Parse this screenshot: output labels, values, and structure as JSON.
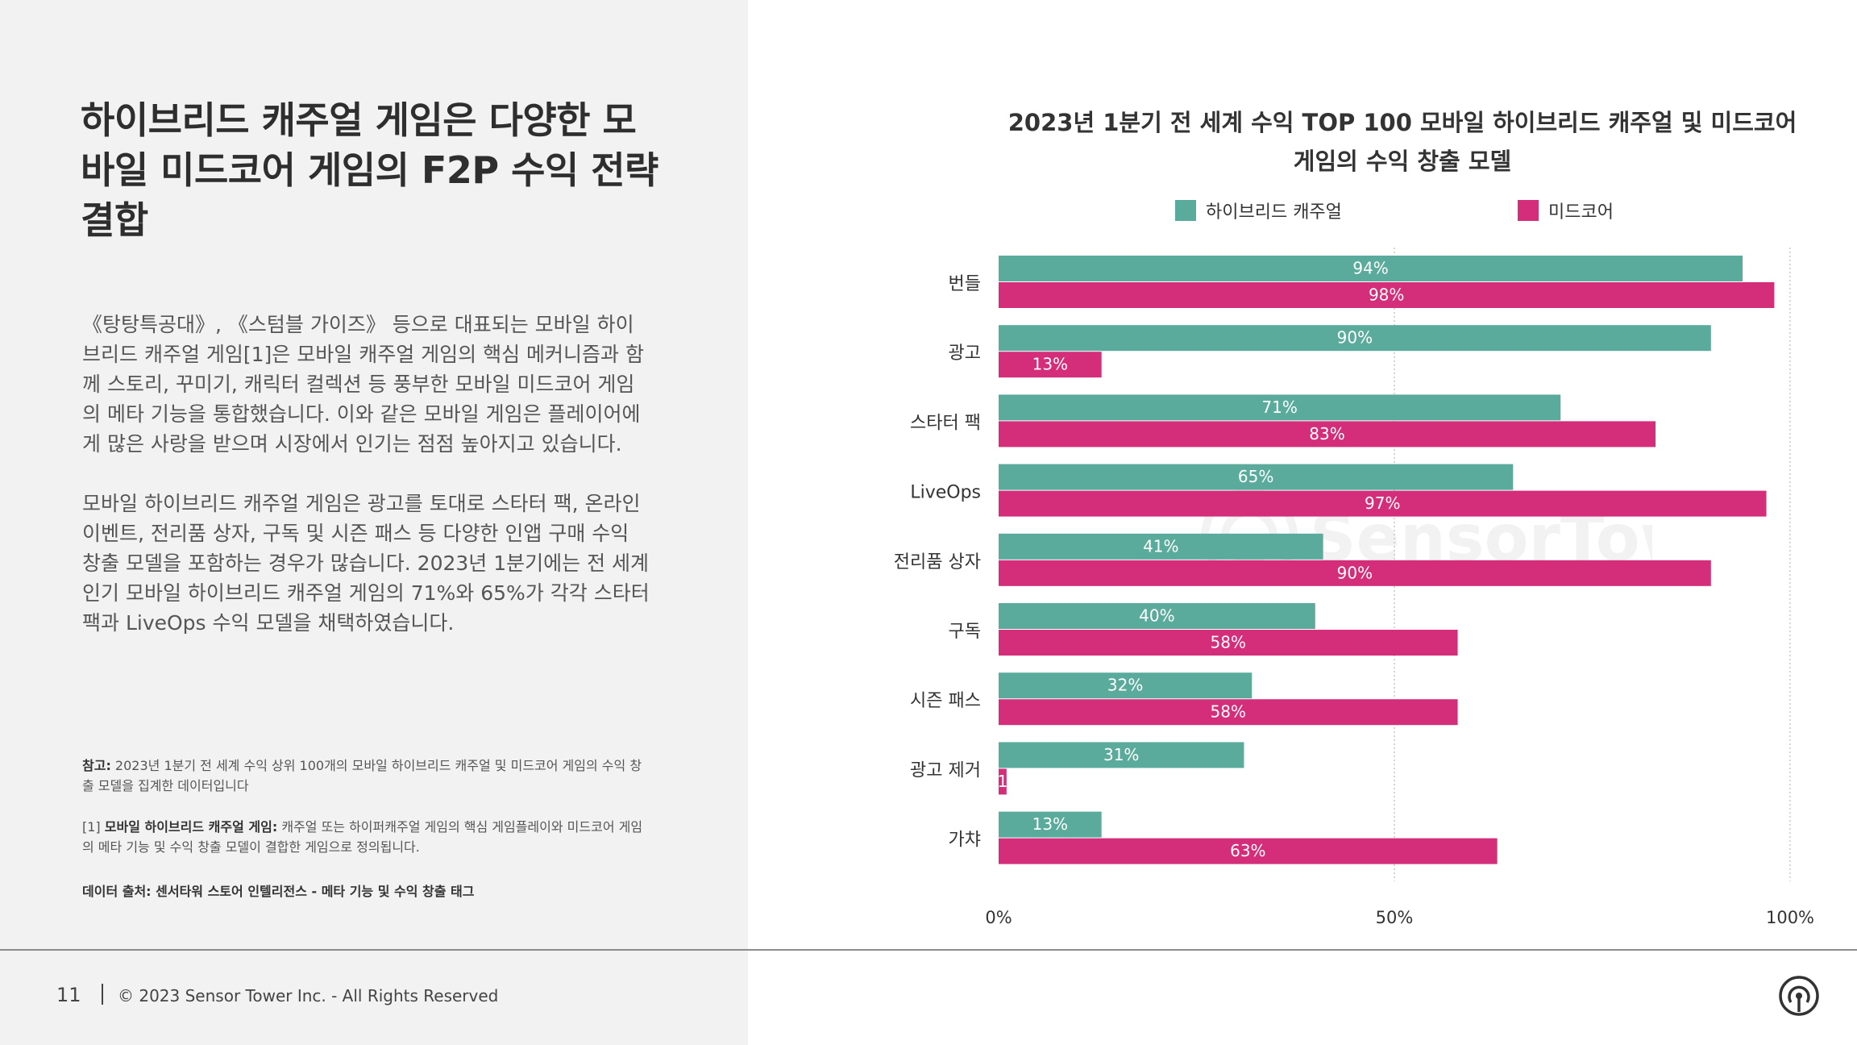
{
  "headline": "하이브리드 캐주얼 게임은 다양한 모바일 미드코어 게임의 F2P 수익 전략 결합",
  "paragraph1": "《탕탕특공대》, 《스텀블 가이즈》 등으로 대표되는 모바일 하이브리드 캐주얼 게임[1]은 모바일 캐주얼 게임의 핵심 메커니즘과 함께 스토리, 꾸미기, 캐릭터 컬렉션 등 풍부한 모바일 미드코어 게임의 메타 기능을 통합했습니다. 이와 같은 모바일 게임은 플레이어에게 많은 사랑을 받으며 시장에서 인기는 점점 높아지고 있습니다.",
  "paragraph2": "모바일 하이브리드 캐주얼 게임은 광고를 토대로 스타터 팩, 온라인 이벤트, 전리품 상자, 구독 및 시즌 패스 등 다양한 인앱 구매 수익 창출 모델을 포함하는 경우가 많습니다. 2023년 1분기에는 전 세계 인기 모바일 하이브리드 캐주얼 게임의 71%와 65%가 각각 스타터 팩과 LiveOps 수익 모델을 채택하였습니다.",
  "notes": {
    "note1_label": "참고:",
    "note1_text": " 2023년 1분기 전 세계 수익 상위 100개의 모바일 하이브리드 캐주얼 및 미드코어 게임의 수익 창출 모델을 집계한 데이터입니다",
    "note2_prefix": "[1] ",
    "note2_label": "모바일 하이브리드 캐주얼 게임:",
    "note2_text": " 캐주얼 또는 하이퍼캐주얼 게임의 핵심 게임플레이와 미드코어 게임의 메타 기능 및 수익 창출 모델이 결합한 게임으로 정의됩니다.",
    "source": "데이터 출처: 센서타워 스토어 인텔리전스 - 메타 기능 및 수익 창출 태그"
  },
  "footer": {
    "page_number": "11",
    "copyright": "© 2023 Sensor Tower Inc. - All Rights Reserved"
  },
  "watermark_text": "SensorTower",
  "colors": {
    "hybrid": "#5aab9b",
    "midcore": "#d42d7a",
    "left_bg": "#f2f2f2"
  },
  "chart_data": {
    "type": "bar",
    "orientation": "horizontal",
    "title": "2023년 1분기 전 세계 수익 TOP 100 모바일 하이브리드 캐주얼 및 미드코어 게임의 수익 창출 모델",
    "categories": [
      "번들",
      "광고",
      "스타터 팩",
      "LiveOps",
      "전리품 상자",
      "구독",
      "시즌 패스",
      "광고 제거",
      "가챠"
    ],
    "series": [
      {
        "name": "하이브리드 캐주얼",
        "values": [
          94,
          90,
          71,
          65,
          41,
          40,
          32,
          31,
          13
        ]
      },
      {
        "name": "미드코어",
        "values": [
          98,
          13,
          83,
          97,
          90,
          58,
          58,
          1,
          63
        ]
      }
    ],
    "xlim": [
      0,
      100
    ],
    "ticks": [
      "0%",
      "50%",
      "100%"
    ],
    "legend": "top",
    "grid": true
  }
}
